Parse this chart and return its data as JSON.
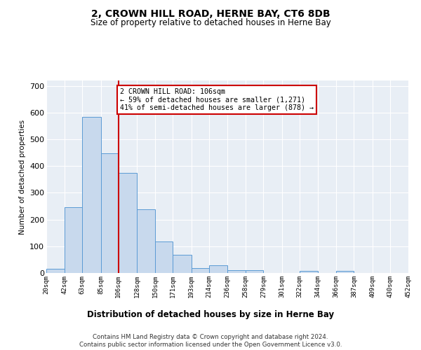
{
  "title": "2, CROWN HILL ROAD, HERNE BAY, CT6 8DB",
  "subtitle": "Size of property relative to detached houses in Herne Bay",
  "xlabel": "Distribution of detached houses by size in Herne Bay",
  "ylabel": "Number of detached properties",
  "bar_color": "#c8d9ed",
  "bar_edge_color": "#5b9bd5",
  "background_color": "#e8eef5",
  "grid_color": "#ffffff",
  "vline_x": 106,
  "vline_color": "#cc0000",
  "annotation_text": "2 CROWN HILL ROAD: 106sqm\n← 59% of detached houses are smaller (1,271)\n41% of semi-detached houses are larger (878) →",
  "annotation_box_color": "#ffffff",
  "annotation_box_edge": "#cc0000",
  "bin_edges": [
    20,
    42,
    63,
    85,
    106,
    128,
    150,
    171,
    193,
    214,
    236,
    258,
    279,
    301,
    322,
    344,
    366,
    387,
    409,
    430,
    452
  ],
  "bin_labels": [
    "20sqm",
    "42sqm",
    "63sqm",
    "85sqm",
    "106sqm",
    "128sqm",
    "150sqm",
    "171sqm",
    "193sqm",
    "214sqm",
    "236sqm",
    "258sqm",
    "279sqm",
    "301sqm",
    "322sqm",
    "344sqm",
    "366sqm",
    "387sqm",
    "409sqm",
    "430sqm",
    "452sqm"
  ],
  "bar_heights": [
    15,
    245,
    585,
    448,
    375,
    238,
    118,
    68,
    18,
    28,
    11,
    11,
    0,
    0,
    7,
    0,
    7,
    0,
    0,
    0
  ],
  "ylim": [
    0,
    720
  ],
  "yticks": [
    0,
    100,
    200,
    300,
    400,
    500,
    600,
    700
  ],
  "footnote": "Contains HM Land Registry data © Crown copyright and database right 2024.\nContains public sector information licensed under the Open Government Licence v3.0."
}
